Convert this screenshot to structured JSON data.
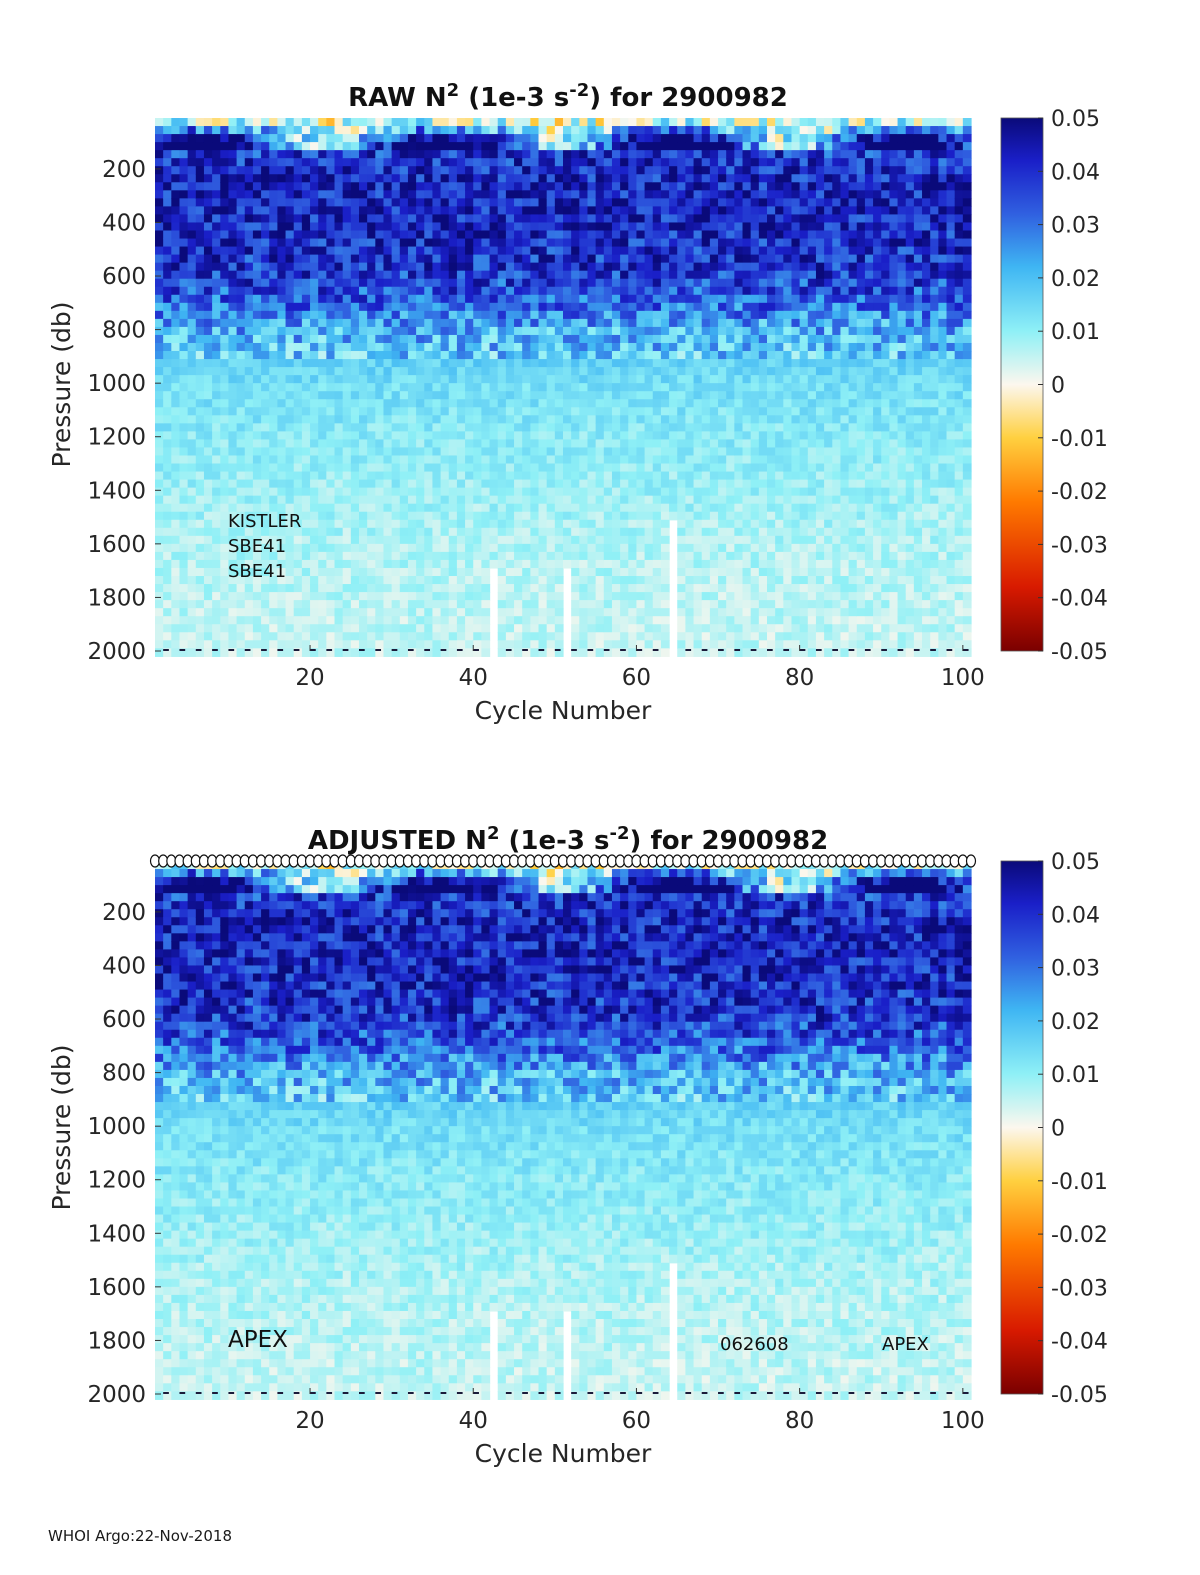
{
  "chart_data": [
    {
      "type": "heatmap",
      "title_parts": [
        "RAW N",
        "2",
        " (1e-3 s",
        "-2",
        ") for 2900982"
      ],
      "xlabel": "Cycle Number",
      "ylabel": "Pressure (db)",
      "xlim": [
        1,
        101
      ],
      "ylim": [
        2000,
        10
      ],
      "xticks": [
        20,
        40,
        60,
        80,
        100
      ],
      "yticks": [
        200,
        400,
        600,
        800,
        1000,
        1200,
        1400,
        1600,
        1800,
        2000
      ],
      "colorbar": {
        "min": -0.05,
        "max": 0.05,
        "ticks": [
          "0.05",
          "0.04",
          "0.03",
          "0.02",
          "0.01",
          "0",
          "-0.01",
          "-0.02",
          "-0.03",
          "-0.04",
          "-0.05"
        ]
      },
      "colormap": "jet-like diverging (dark red – orange – white – cyan – blue – navy)",
      "profile": [
        {
          "p": 25,
          "v": 0.004
        },
        {
          "p": 100,
          "v": 0.035
        },
        {
          "p": 200,
          "v": 0.041
        },
        {
          "p": 400,
          "v": 0.042
        },
        {
          "p": 600,
          "v": 0.038
        },
        {
          "p": 700,
          "v": 0.032
        },
        {
          "p": 800,
          "v": 0.022
        },
        {
          "p": 900,
          "v": 0.017
        },
        {
          "p": 1000,
          "v": 0.014
        },
        {
          "p": 1200,
          "v": 0.011
        },
        {
          "p": 1400,
          "v": 0.009
        },
        {
          "p": 1600,
          "v": 0.007
        },
        {
          "p": 1800,
          "v": 0.006
        },
        {
          "p": 2000,
          "v": 0.005
        }
      ],
      "missing_columns": [
        {
          "cycle": 42,
          "from": 1700
        },
        {
          "cycle": 51,
          "from": 1700
        },
        {
          "cycle": 64,
          "from": 1500
        }
      ],
      "annotations": [
        "KISTLER",
        "SBE41",
        "SBE41"
      ],
      "show_circle_markers": false
    },
    {
      "type": "heatmap",
      "title_parts": [
        "ADJUSTED N",
        "2",
        " (1e-3 s",
        "-2",
        ") for 2900982"
      ],
      "xlabel": "Cycle Number",
      "ylabel": "Pressure (db)",
      "xlim": [
        1,
        101
      ],
      "ylim": [
        2000,
        10
      ],
      "xticks": [
        20,
        40,
        60,
        80,
        100
      ],
      "yticks": [
        200,
        400,
        600,
        800,
        1000,
        1200,
        1400,
        1600,
        1800,
        2000
      ],
      "colorbar": {
        "min": -0.05,
        "max": 0.05,
        "ticks": [
          "0.05",
          "0.04",
          "0.03",
          "0.02",
          "0.01",
          "0",
          "-0.01",
          "-0.02",
          "-0.03",
          "-0.04",
          "-0.05"
        ]
      },
      "colormap": "jet-like diverging (dark red – orange – white – cyan – blue – navy)",
      "profile": [
        {
          "p": 25,
          "v": 0.004
        },
        {
          "p": 100,
          "v": 0.035
        },
        {
          "p": 200,
          "v": 0.041
        },
        {
          "p": 400,
          "v": 0.042
        },
        {
          "p": 600,
          "v": 0.038
        },
        {
          "p": 700,
          "v": 0.032
        },
        {
          "p": 800,
          "v": 0.022
        },
        {
          "p": 900,
          "v": 0.017
        },
        {
          "p": 1000,
          "v": 0.014
        },
        {
          "p": 1200,
          "v": 0.011
        },
        {
          "p": 1400,
          "v": 0.009
        },
        {
          "p": 1600,
          "v": 0.007
        },
        {
          "p": 1800,
          "v": 0.006
        },
        {
          "p": 2000,
          "v": 0.005
        }
      ],
      "missing_columns": [
        {
          "cycle": 42,
          "from": 1700
        },
        {
          "cycle": 51,
          "from": 1700
        },
        {
          "cycle": 64,
          "from": 1500
        }
      ],
      "annotations": [
        "APEX",
        "062608",
        "APEX"
      ],
      "show_circle_markers": true
    }
  ],
  "footer": "WHOI Argo:22-Nov-2018"
}
